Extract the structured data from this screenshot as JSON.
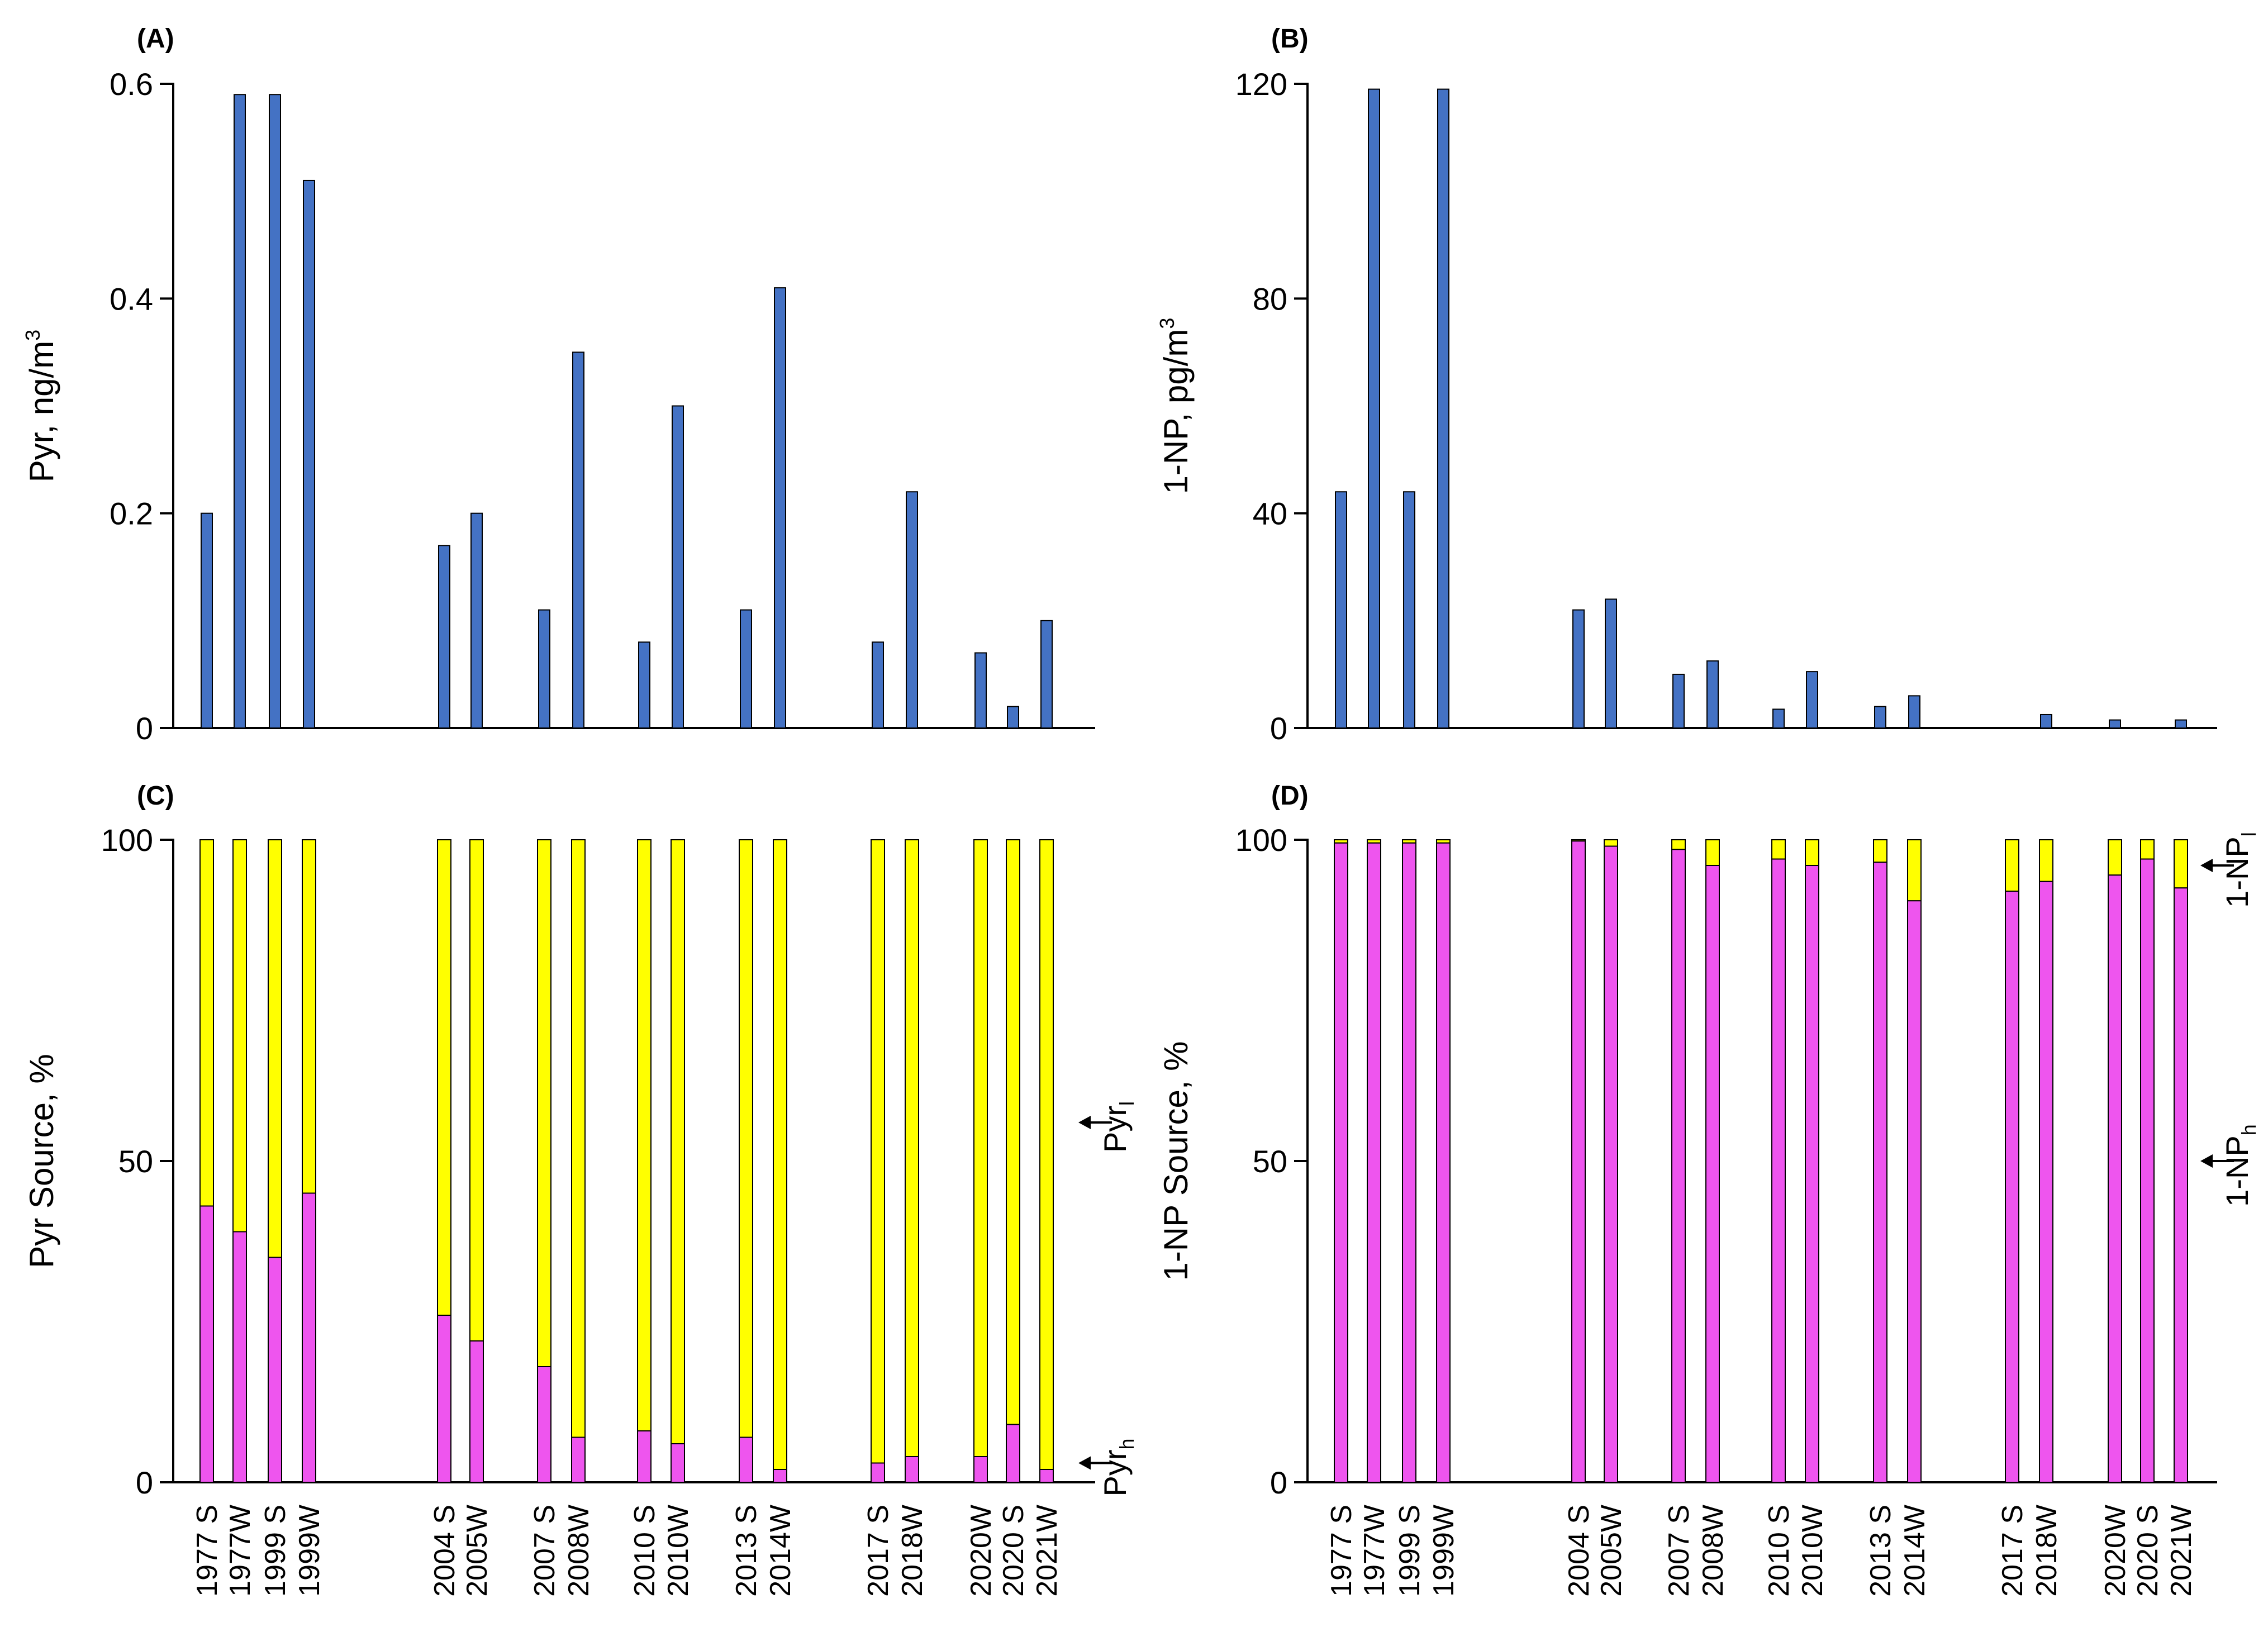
{
  "categories": [
    "1977 S",
    "1977W",
    "1999 S",
    "1999W",
    "2004 S",
    "2005W",
    "2007 S",
    "2008W",
    "2010 S",
    "2010W",
    "2013 S",
    "2014W",
    "2017 S",
    "2018W",
    "2020W",
    "2020 S",
    "2021W"
  ],
  "colors": {
    "bar": "#4472C4",
    "heavy": "#EE55EE",
    "light": "#FFFF00",
    "axis": "#000000"
  },
  "chart_data": [
    {
      "panel": "(A)",
      "type": "bar",
      "ylabel": "Pyr, ng/m3",
      "ylabel_main": "Pyr, ng/m",
      "ylabel_sup": "3",
      "ylim": [
        0,
        0.6
      ],
      "yticks": [
        "0",
        "0.2",
        "0.4",
        "0.6"
      ],
      "ytick_values": [
        0,
        0.2,
        0.4,
        0.6
      ],
      "values": [
        0.2,
        0.59,
        0.59,
        0.51,
        0.17,
        0.2,
        0.11,
        0.35,
        0.08,
        0.3,
        0.11,
        0.41,
        0.08,
        0.22,
        0.07,
        0.02,
        0.1
      ]
    },
    {
      "panel": "(B)",
      "type": "bar",
      "ylabel": "1-NP, pg/m3",
      "ylabel_main": "1-NP, pg/m",
      "ylabel_sup": "3",
      "ylim": [
        0,
        120
      ],
      "yticks": [
        "0",
        "40",
        "80",
        "120"
      ],
      "ytick_values": [
        0,
        40,
        80,
        120
      ],
      "values": [
        44,
        119,
        44,
        119,
        22,
        24,
        10,
        12.5,
        3.5,
        10.5,
        4,
        6,
        0,
        2.5,
        1.5,
        0,
        1.5
      ]
    },
    {
      "panel": "(C)",
      "type": "stacked_bar",
      "ylabel": "Pyr Source, %",
      "ylim": [
        0,
        100
      ],
      "yticks": [
        "0",
        "50",
        "100"
      ],
      "ytick_values": [
        0,
        50,
        100
      ],
      "series": [
        {
          "name": "Pyrh",
          "values": [
            43,
            39,
            35,
            45,
            26,
            22,
            18,
            7,
            8,
            6,
            7,
            2,
            3,
            4,
            4,
            9,
            2
          ]
        },
        {
          "name": "Pyrl",
          "values": [
            57,
            61,
            65,
            55,
            74,
            78,
            82,
            93,
            92,
            94,
            93,
            98,
            97,
            96,
            96,
            91,
            98
          ]
        }
      ],
      "annotations": [
        {
          "text": "Pyr",
          "sub": "l",
          "value": 56
        },
        {
          "text": "Pyr",
          "sub": "h",
          "value": 3
        }
      ]
    },
    {
      "panel": "(D)",
      "type": "stacked_bar",
      "ylabel": "1-NP Source, %",
      "ylim": [
        0,
        100
      ],
      "yticks": [
        "0",
        "50",
        "100"
      ],
      "ytick_values": [
        0,
        50,
        100
      ],
      "series": [
        {
          "name": "1-NPh",
          "values": [
            99.5,
            99.5,
            99.5,
            99.5,
            99.8,
            99,
            98.5,
            96,
            97,
            96,
            96.5,
            90.5,
            92,
            93.5,
            94.5,
            97,
            92.5
          ]
        },
        {
          "name": "1-NPl",
          "values": [
            0.5,
            0.5,
            0.5,
            0.5,
            0.2,
            1,
            1.5,
            4,
            3,
            4,
            3.5,
            9.5,
            8,
            6.5,
            5.5,
            3,
            7.5
          ]
        }
      ],
      "annotations": [
        {
          "text": "1-NP",
          "sub": "l",
          "value": 96
        },
        {
          "text": "1-NP",
          "sub": "h",
          "value": 50
        }
      ]
    }
  ]
}
